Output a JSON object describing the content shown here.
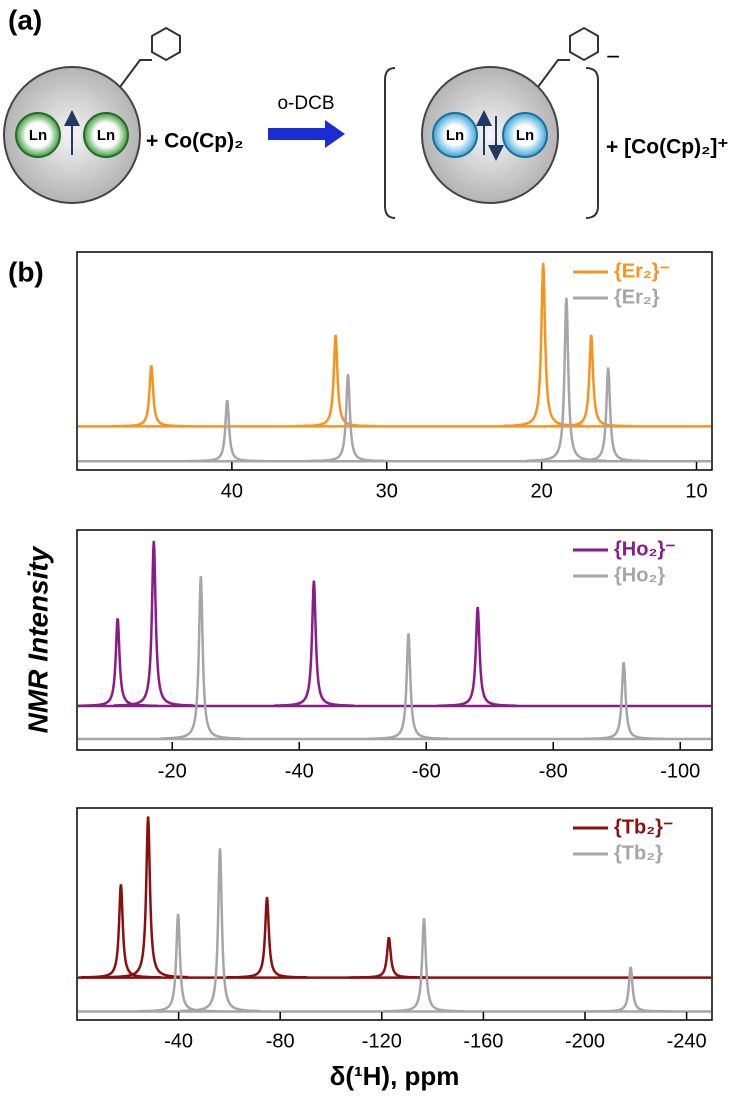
{
  "panel_labels": [
    "(a)",
    "(b)"
  ],
  "scheme": {
    "metal": "Ln",
    "reactant": "+ Co(Cp)₂",
    "reagent": "o-DCB",
    "charge": "−",
    "product": "+ [Co(Cp)₂]⁺"
  },
  "chart_data": [
    {
      "type": "spectrum",
      "xlim": [
        50,
        9
      ],
      "xticks": [
        40,
        30,
        20,
        10
      ],
      "ylim": [
        0,
        1
      ],
      "legend": "top-right",
      "series": [
        {
          "name": "{Er₂}⁻",
          "color": "#f7941d",
          "baseline": 0.2,
          "x": [
            45.2,
            33.3,
            19.9,
            16.8
          ],
          "values": [
            0.48,
            0.62,
            0.95,
            0.62
          ]
        },
        {
          "name": "{Er₂}",
          "color": "#a6a6a6",
          "baseline": 0.04,
          "x": [
            40.3,
            32.5,
            18.4,
            15.7
          ],
          "values": [
            0.32,
            0.44,
            0.79,
            0.47
          ]
        }
      ]
    },
    {
      "type": "spectrum",
      "xlim": [
        -5,
        -105
      ],
      "xticks": [
        -20,
        -40,
        -60,
        -80,
        -100
      ],
      "ylim": [
        0,
        1
      ],
      "legend": "top-right",
      "ylabel": "NMR Intensity",
      "series": [
        {
          "name": "{Ho₂}⁻",
          "color": "#8b1a8b",
          "baseline": 0.2,
          "x": [
            -11.4,
            -17.1,
            -42.3,
            -68.1
          ],
          "values": [
            0.6,
            0.95,
            0.77,
            0.65
          ]
        },
        {
          "name": "{Ho₂}",
          "color": "#a6a6a6",
          "baseline": 0.05,
          "x": [
            -24.5,
            -57.2,
            -91.1
          ],
          "values": [
            0.79,
            0.53,
            0.4
          ]
        }
      ]
    },
    {
      "type": "spectrum",
      "xlim": [
        0,
        -250
      ],
      "xticks": [
        -40,
        -80,
        -120,
        -160,
        -200,
        -240
      ],
      "ylim": [
        0,
        1
      ],
      "legend": "top-right",
      "xlabel": "δ(¹H), ppm",
      "series": [
        {
          "name": "{Tb₂}⁻",
          "color": "#8b0f0f",
          "baseline": 0.2,
          "x": [
            -17.3,
            -28,
            -74.8,
            -122.8
          ],
          "values": [
            0.64,
            0.96,
            0.58,
            0.39
          ]
        },
        {
          "name": "{Tb₂}",
          "color": "#a6a6a6",
          "baseline": 0.04,
          "x": [
            -39.8,
            -56.3,
            -136.6,
            -218
          ],
          "values": [
            0.5,
            0.81,
            0.48,
            0.25
          ]
        }
      ]
    }
  ]
}
